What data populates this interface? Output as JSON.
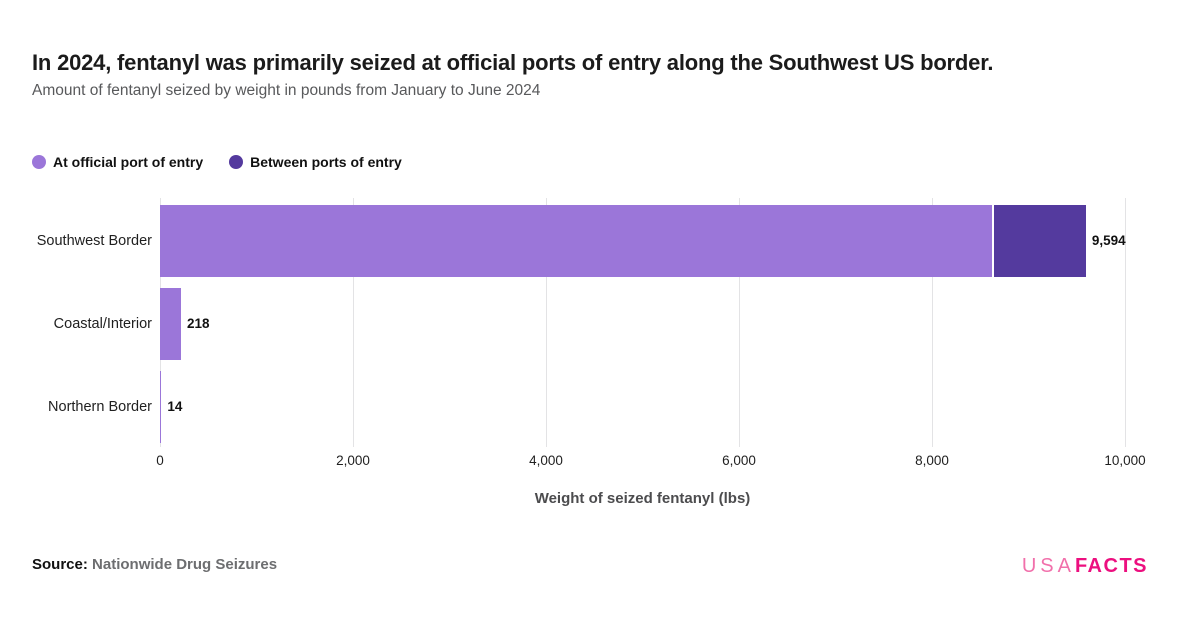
{
  "chart_data": {
    "type": "bar",
    "orientation": "horizontal",
    "stacked": true,
    "title": "In 2024, fentanyl was primarily seized at official ports of entry along the Southwest US border.",
    "subtitle": "Amount of fentanyl seized by weight in pounds from January to June 2024",
    "categories": [
      "Southwest Border",
      "Coastal/Interior",
      "Northern Border"
    ],
    "series": [
      {
        "name": "At official port of entry",
        "color": "#9b76d9",
        "values": [
          8620,
          218,
          14
        ]
      },
      {
        "name": "Between ports of entry",
        "color": "#543a9e",
        "values": [
          974,
          0,
          0
        ]
      }
    ],
    "totals": [
      9594,
      218,
      14
    ],
    "total_labels": [
      "9,594",
      "218",
      "14"
    ],
    "xlabel": "Weight of seized fentanyl (lbs)",
    "xlim": [
      0,
      10000
    ],
    "xticks": [
      0,
      2000,
      4000,
      6000,
      8000,
      10000
    ],
    "xtick_labels": [
      "0",
      "2,000",
      "4,000",
      "6,000",
      "8,000",
      "10,000"
    ],
    "legend_position": "top-left",
    "grid": "vertical-only"
  },
  "footer": {
    "source_label": "Source:",
    "source_name": "Nationwide Drug Seizures",
    "logo_usa": "USA",
    "logo_facts": "FACTS"
  }
}
